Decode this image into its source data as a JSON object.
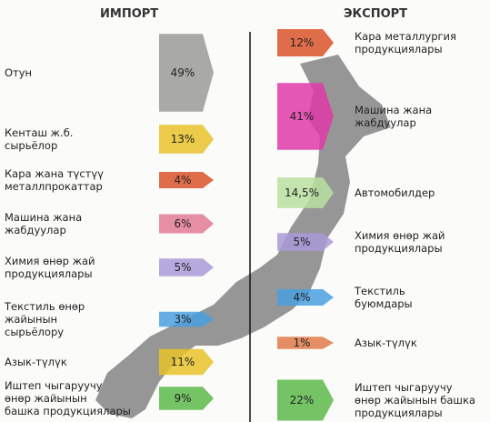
{
  "import": {
    "title": "ИМПОРТ",
    "items": [
      {
        "label": "Отун",
        "value": 49,
        "value_label": "49%",
        "color": "#9a9a9a"
      },
      {
        "label": "Кенташ ж.б.\nсырьёлор",
        "value": 13,
        "value_label": "13%",
        "color": "#e8c22a"
      },
      {
        "label": "Кара жана түстүү\nметаллпрокаттар",
        "value": 4,
        "value_label": "4%",
        "color": "#d9532a"
      },
      {
        "label": "Машина жана\nжабдуулар",
        "value": 6,
        "value_label": "6%",
        "color": "#e07a95"
      },
      {
        "label": "Химия өнөр жай\nпродукциялары",
        "value": 5,
        "value_label": "5%",
        "color": "#a99ad8"
      },
      {
        "label": "Текстиль өнөр\nжайынын\nсырьёлору",
        "value": 3,
        "value_label": "3%",
        "color": "#4aa0e0"
      },
      {
        "label": "Азык-түлүк",
        "value": 11,
        "value_label": "11%",
        "color": "#e8c22a"
      },
      {
        "label": "Иштеп чыгаруучу\nөнөр жайынын\nбашка продукциялары",
        "value": 9,
        "value_label": "9%",
        "color": "#5cb84a"
      }
    ]
  },
  "export": {
    "title": "ЭКСПОРТ",
    "items": [
      {
        "label": "Кара металлургия\nпродукциялары",
        "value": 12,
        "value_label": "12%",
        "color": "#d9532a"
      },
      {
        "label": "Машина жана\nжабдуулар",
        "value": 41,
        "value_label": "41%",
        "color": "#e03aa8"
      },
      {
        "label": "Автомобилдер",
        "value": 14.5,
        "value_label": "14,5%",
        "color": "#b8e0a0"
      },
      {
        "label": "Химия өнөр жай\nпродукциялары",
        "value": 5,
        "value_label": "5%",
        "color": "#a99ad8"
      },
      {
        "label": "Текстиль\nбуюмдары",
        "value": 4,
        "value_label": "4%",
        "color": "#4aa0e0"
      },
      {
        "label": "Азык-түлүк",
        "value": 1,
        "value_label": "1%",
        "color": "#e07a4a"
      },
      {
        "label": "Иштеп чыгаруучу\nөнөр жайынын башка\nпродукциялары",
        "value": 22,
        "value_label": "22%",
        "color": "#5cb84a"
      }
    ]
  }
}
